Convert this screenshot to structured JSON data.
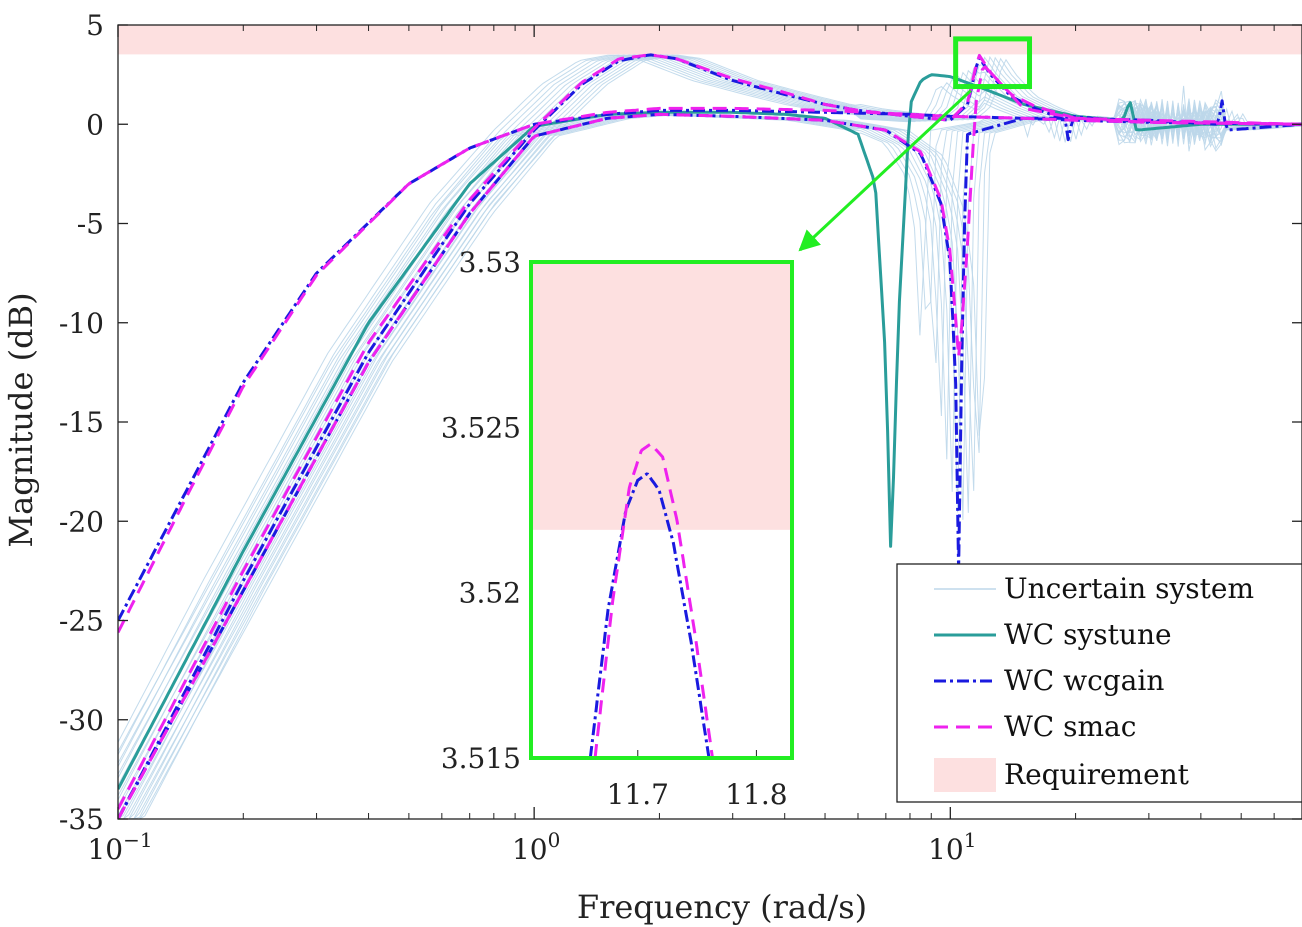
{
  "chart_data": [
    {
      "type": "line",
      "xlabel": "Frequency (rad/s)",
      "ylabel": "Magnitude (dB)",
      "xscale": "log",
      "xlim": [
        0.1,
        70
      ],
      "ylim": [
        -35,
        5
      ],
      "grid": false,
      "legend_position": "bottom-right",
      "xticks": [
        {
          "value": 0.1,
          "base": "10",
          "exp": "−1"
        },
        {
          "value": 1,
          "base": "10",
          "exp": "0"
        },
        {
          "value": 10,
          "base": "10",
          "exp": "1"
        }
      ],
      "yticks": [
        {
          "value": 5,
          "label": "5"
        },
        {
          "value": 0,
          "label": "0"
        },
        {
          "value": -5,
          "label": "-5"
        },
        {
          "value": -10,
          "label": "-10"
        },
        {
          "value": -15,
          "label": "-15"
        },
        {
          "value": -20,
          "label": "-20"
        },
        {
          "value": -25,
          "label": "-25"
        },
        {
          "value": -30,
          "label": "-30"
        },
        {
          "value": -35,
          "label": "-35"
        }
      ],
      "requirement": {
        "label": "Requirement",
        "y_from": 3.52,
        "y_to": 5,
        "color": "#fde0e0"
      },
      "series": [
        {
          "name": "Uncertain system",
          "color": "#bdd7ea",
          "style": "solid",
          "width": 1,
          "samples": 25,
          "description_points": {
            "corner_range": [
              0.7,
              1.2
            ],
            "peak": [
              1.6,
              3.4
            ],
            "notch_range": [
              7.0,
              10.5
            ],
            "notch_depth": -22
          }
        },
        {
          "name": "WC systune",
          "color": "#2a9d9a",
          "style": "solid",
          "width": 3,
          "curves": [
            {
              "x": [
                0.1,
                0.2,
                0.4,
                0.7,
                1.0,
                1.5,
                2.0,
                3.0,
                4.0,
                5.0,
                6.0,
                6.6,
                7.0,
                7.2,
                7.5,
                8.0,
                8.5,
                9.0,
                10.0,
                12.0,
                15.0,
                20.0,
                26.0,
                27.0,
                28.0,
                40.0,
                70.0
              ],
              "y": [
                -33.5,
                -21.5,
                -10.0,
                -3.0,
                -0.1,
                0.5,
                0.6,
                0.6,
                0.5,
                0.3,
                -0.5,
                -3.0,
                -12.0,
                -22.0,
                -10.0,
                1.0,
                2.2,
                2.5,
                2.4,
                1.8,
                1.0,
                0.4,
                0.2,
                1.2,
                -0.3,
                0.0,
                0.0
              ]
            }
          ]
        },
        {
          "name": "WC wcgain",
          "color": "#1a1adf",
          "style": "dashdot",
          "width": 3,
          "curves": [
            {
              "x": [
                0.1,
                0.15,
                0.2,
                0.3,
                0.5,
                0.7,
                1.0,
                1.5,
                2.0,
                3.0,
                5.0,
                8.0,
                10.0,
                15.0,
                20.0,
                30.0,
                45.0,
                70.0
              ],
              "y": [
                -25.0,
                -18.0,
                -13.0,
                -7.5,
                -3.0,
                -1.2,
                0.0,
                0.5,
                0.7,
                0.7,
                0.6,
                0.5,
                0.4,
                0.3,
                0.2,
                0.1,
                0.05,
                0.0
              ]
            },
            {
              "x": [
                0.1,
                0.2,
                0.4,
                0.7,
                1.0,
                1.3,
                1.6,
                1.9,
                2.2,
                3.0,
                4.0,
                5.0,
                6.0,
                8.0,
                10.0,
                11.0,
                11.7,
                12.5,
                14.0,
                16.0,
                19.0,
                19.3,
                19.6,
                22.0,
                28.0,
                45.0,
                70.0
              ],
              "y": [
                -35.0,
                -23.0,
                -11.5,
                -4.0,
                -0.3,
                2.0,
                3.2,
                3.5,
                3.3,
                2.2,
                1.5,
                1.0,
                0.7,
                0.4,
                0.2,
                1.0,
                3.4,
                2.5,
                1.4,
                0.8,
                0.2,
                -1.3,
                0.4,
                0.3,
                0.15,
                0.05,
                0.0
              ]
            },
            {
              "x": [
                0.1,
                0.2,
                0.4,
                0.7,
                1.0,
                1.5,
                2.0,
                3.0,
                5.0,
                7.0,
                8.5,
                9.5,
                10.0,
                10.3,
                10.5,
                10.7,
                11.0,
                15.0,
                20.0,
                30.0,
                44.0,
                45.0,
                46.0,
                70.0
              ],
              "y": [
                -35.0,
                -23.5,
                -12.0,
                -4.5,
                -0.6,
                0.3,
                0.5,
                0.4,
                0.2,
                -0.3,
                -1.5,
                -4.0,
                -7.0,
                -13.0,
                -24.0,
                -8.0,
                -0.5,
                0.3,
                0.3,
                0.2,
                0.0,
                1.2,
                -0.3,
                0.0
              ]
            }
          ]
        },
        {
          "name": "WC smac",
          "color": "#ee22ee",
          "style": "dash",
          "width": 3,
          "curves": [
            {
              "x": [
                0.1,
                0.15,
                0.2,
                0.3,
                0.5,
                0.7,
                1.0,
                1.5,
                2.0,
                3.0,
                5.0,
                8.0,
                10.0,
                15.0,
                20.0,
                30.0,
                45.0,
                70.0
              ],
              "y": [
                -25.6,
                -18.3,
                -13.2,
                -7.6,
                -3.0,
                -1.2,
                0.0,
                0.6,
                0.8,
                0.8,
                0.7,
                0.5,
                0.4,
                0.3,
                0.2,
                0.1,
                0.05,
                0.0
              ]
            },
            {
              "x": [
                0.1,
                0.2,
                0.4,
                0.7,
                1.0,
                1.3,
                1.6,
                1.9,
                2.2,
                3.0,
                4.0,
                5.0,
                6.0,
                8.0,
                10.0,
                11.0,
                11.7,
                12.5,
                14.0,
                16.0,
                20.0,
                30.0,
                70.0
              ],
              "y": [
                -34.5,
                -22.5,
                -11.0,
                -3.8,
                -0.2,
                2.1,
                3.3,
                3.5,
                3.3,
                2.3,
                1.6,
                1.0,
                0.7,
                0.4,
                0.2,
                1.1,
                3.52,
                2.6,
                1.5,
                0.9,
                0.3,
                0.1,
                0.0
              ]
            },
            {
              "x": [
                0.1,
                0.2,
                0.4,
                0.7,
                1.0,
                1.5,
                2.0,
                3.0,
                5.0,
                7.0,
                8.5,
                9.5,
                10.0,
                10.5,
                11.0,
                11.5,
                12.0,
                15.0,
                20.0,
                30.0,
                70.0
              ],
              "y": [
                -35.0,
                -23.5,
                -12.0,
                -4.5,
                -0.6,
                0.3,
                0.5,
                0.4,
                0.2,
                -0.3,
                -1.4,
                -3.8,
                -6.5,
                -12.0,
                -6.0,
                1.0,
                3.0,
                0.8,
                0.3,
                0.2,
                0.0
              ]
            }
          ]
        }
      ],
      "zoom_box": {
        "x_from": 10.3,
        "x_to": 15.5,
        "y_from": 1.9,
        "y_to": 4.3,
        "color": "#22ee22"
      }
    },
    {
      "type": "line",
      "role": "inset",
      "xlim": [
        11.61,
        11.83
      ],
      "ylim": [
        3.515,
        3.53
      ],
      "xticks": [
        {
          "value": 11.7,
          "label": "11.7"
        },
        {
          "value": 11.8,
          "label": "11.8"
        }
      ],
      "yticks": [
        {
          "value": 3.53,
          "label": "3.53"
        },
        {
          "value": 3.525,
          "label": "3.525"
        },
        {
          "value": 3.52,
          "label": "3.52"
        },
        {
          "value": 3.515,
          "label": "3.515"
        }
      ],
      "requirement_y_from": 3.5219,
      "series": [
        {
          "name": "WC wcgain",
          "x": [
            11.66,
            11.675,
            11.69,
            11.7,
            11.708,
            11.718,
            11.73,
            11.745,
            11.76
          ],
          "y": [
            3.515,
            3.5195,
            3.5225,
            3.5234,
            3.5236,
            3.5231,
            3.5215,
            3.5185,
            3.515
          ]
        },
        {
          "name": "WC smac",
          "x": [
            11.664,
            11.679,
            11.693,
            11.703,
            11.711,
            11.721,
            11.733,
            11.748,
            11.763
          ],
          "y": [
            3.515,
            3.5198,
            3.5232,
            3.5243,
            3.5245,
            3.5241,
            3.5222,
            3.5188,
            3.515
          ]
        }
      ]
    }
  ]
}
